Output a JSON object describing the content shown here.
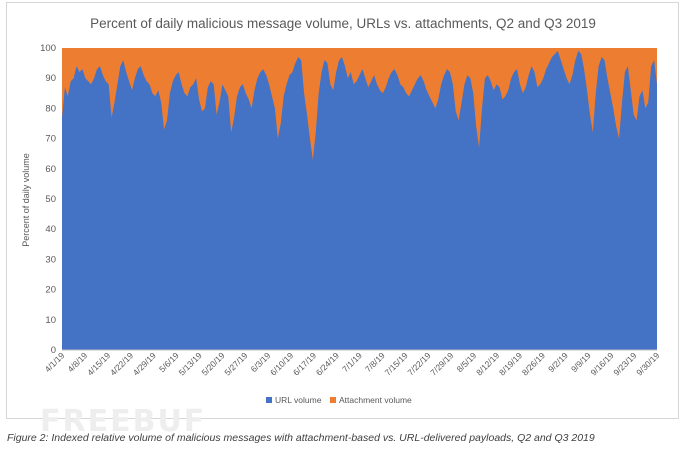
{
  "chart_data": {
    "type": "area",
    "stacked": true,
    "title": "Percent of daily malicious message volume, URLs vs. attachments, Q2 and Q3 2019",
    "ylabel": "Percent of daily volume",
    "xlabel": "",
    "ylim": [
      0,
      100
    ],
    "y_ticks": [
      0,
      10,
      20,
      30,
      40,
      50,
      60,
      70,
      80,
      90,
      100
    ],
    "grid": false,
    "legend_position": "bottom",
    "x_tick_labels": [
      "4/1/19",
      "4/8/19",
      "4/15/19",
      "4/22/19",
      "4/29/19",
      "5/6/19",
      "5/13/19",
      "5/20/19",
      "5/27/19",
      "6/3/19",
      "6/10/19",
      "6/17/19",
      "6/24/19",
      "7/1/19",
      "7/8/19",
      "7/15/19",
      "7/22/19",
      "7/29/19",
      "8/5/19",
      "8/12/19",
      "8/19/19",
      "8/26/19",
      "9/2/19",
      "9/9/19",
      "9/16/19",
      "9/23/19",
      "9/30/19"
    ],
    "colors": {
      "url": "#4472c4",
      "attachment": "#ed7d31"
    },
    "series": [
      {
        "name": "URL volume",
        "color": "#4472c4",
        "values": [
          77,
          87,
          84,
          89,
          90,
          94,
          92,
          93,
          90,
          89,
          88,
          90,
          93,
          94,
          91,
          89,
          88,
          77,
          82,
          88,
          94,
          96,
          92,
          89,
          86,
          90,
          93,
          94,
          91,
          89,
          88,
          85,
          84,
          86,
          82,
          73,
          76,
          85,
          89,
          91,
          92,
          88,
          85,
          84,
          87,
          88,
          90,
          83,
          79,
          80,
          87,
          89,
          88,
          78,
          82,
          88,
          86,
          84,
          72,
          77,
          84,
          87,
          88,
          85,
          83,
          80,
          86,
          90,
          92,
          93,
          91,
          88,
          84,
          80,
          70,
          75,
          84,
          88,
          91,
          92,
          95,
          97,
          96,
          85,
          78,
          70,
          63,
          72,
          85,
          92,
          96,
          95,
          88,
          86,
          92,
          96,
          97,
          94,
          90,
          92,
          88,
          89,
          91,
          93,
          90,
          87,
          89,
          91,
          88,
          86,
          85,
          87,
          90,
          92,
          93,
          91,
          88,
          87,
          85,
          84,
          86,
          88,
          90,
          91,
          89,
          86,
          84,
          82,
          80,
          83,
          88,
          91,
          93,
          92,
          88,
          79,
          76,
          82,
          88,
          91,
          90,
          85,
          74,
          67,
          80,
          90,
          91,
          89,
          86,
          88,
          87,
          83,
          84,
          86,
          90,
          92,
          93,
          88,
          85,
          87,
          91,
          94,
          92,
          87,
          88,
          90,
          93,
          95,
          97,
          98,
          99,
          96,
          93,
          90,
          88,
          91,
          96,
          99,
          98,
          93,
          86,
          78,
          72,
          85,
          94,
          97,
          96,
          90,
          85,
          80,
          74,
          70,
          82,
          92,
          94,
          86,
          78,
          76,
          84,
          86,
          80,
          82,
          94,
          96,
          88
        ]
      },
      {
        "name": "Attachment volume",
        "color": "#ed7d31",
        "fill_to": 100
      }
    ]
  },
  "legend": {
    "url": "URL volume",
    "attachment": "Attachment volume"
  },
  "caption": "Figure 2: Indexed relative volume of malicious messages with attachment-based vs. URL-delivered payloads, Q2 and Q3 2019",
  "watermark": "FREEBUF"
}
